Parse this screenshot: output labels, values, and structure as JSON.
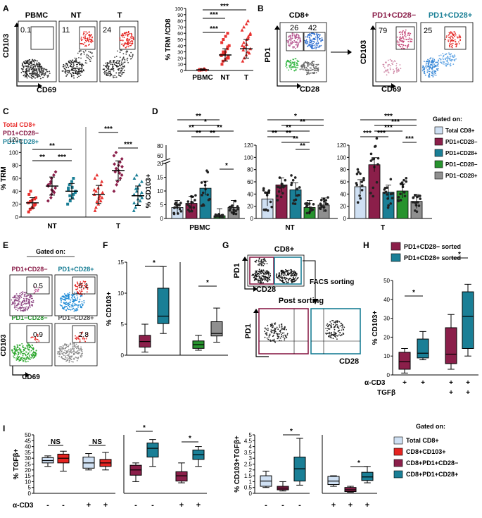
{
  "figure": {
    "panel_letters": [
      "A",
      "B",
      "C",
      "D",
      "E",
      "F",
      "G",
      "H",
      "I"
    ]
  },
  "colors": {
    "pbmc": "#e8312f",
    "purple": "#8b1f4a",
    "teal": "#1a7f96",
    "green": "#27932e",
    "gray": "#8f8f8f",
    "light_blue": "#cfe0f3",
    "red": "#e52421",
    "black": "#000000"
  },
  "panel_a": {
    "flow": [
      {
        "title": "PBMC",
        "pct": "0.1"
      },
      {
        "title": "NT",
        "pct": "11"
      },
      {
        "title": "T",
        "pct": "24"
      }
    ],
    "y_axis": "CD103",
    "x_axis": "CD69"
  },
  "panel_b": {
    "gate_title": "CD8+",
    "quadrant_values": [
      "26",
      "42"
    ],
    "y_axis": "PD1",
    "x_axis": "CD28",
    "sub_plots": [
      {
        "title": "PD1+CD28−",
        "pct": "79"
      },
      {
        "title": "PD1+CD28+",
        "pct": "25"
      }
    ],
    "sub_y": "CD103",
    "sub_x": "CD69"
  },
  "panel_c": {
    "legend": [
      "Total CD8+",
      "PD1+CD28−",
      "PD1+CD28+"
    ],
    "group_labels": [
      "NT",
      "T"
    ],
    "sig_labels": [
      "**",
      "**",
      "***",
      "***",
      "***"
    ]
  },
  "panel_d": {
    "group_labels": [
      "PBMC",
      "NT",
      "T"
    ],
    "gated_title": "Gated on:",
    "legend": [
      "Total CD8+",
      "PD1+CD28−",
      "PD1+CD28+",
      "PD1−CD28−",
      "PD1−CD28+"
    ],
    "y_break_ticks": [
      "60",
      "80"
    ]
  },
  "panel_e": {
    "gated_title": "Gated on:",
    "plots": [
      {
        "title": "PD1+CD28−",
        "pct": "0.5"
      },
      {
        "title": "PD1+CD28+",
        "pct": "5.1"
      },
      {
        "title": "PD1−CD28−",
        "pct": "0.9"
      },
      {
        "title": "PD1−CD28+",
        "pct": "2.8"
      }
    ],
    "y_axis": "CD103",
    "x_axis": "CD69"
  },
  "panel_g": {
    "top_title": "CD8+",
    "side_label": "FACS sorting",
    "bottom_title": "Post sorting",
    "y_axis": "PD1",
    "x_axis": "CD28"
  },
  "panel_h": {
    "legend": [
      "PD1+CD28− sorted",
      "PD1+CD28+ sorted"
    ],
    "row_labels": [
      "α-CD3",
      "TGFβ"
    ],
    "cd3_signs": [
      "+",
      "+",
      "+",
      "+"
    ],
    "tgf_signs": [
      "+",
      "+"
    ]
  },
  "panel_i": {
    "gated_title": "Gated on:",
    "legend": [
      "Total CD8+",
      "CD8+CD103+",
      "CD8+PD1+CD28−",
      "CD8+PD1+CD28+"
    ],
    "row_label": "α-CD3",
    "i1_signs": [
      "-",
      "-",
      "+",
      "+"
    ],
    "i2_signs": [
      "-",
      "-",
      "+",
      "+"
    ],
    "i3_signs": [
      "-",
      "-",
      "-"
    ],
    "i4_signs": [
      "+",
      "+",
      "+"
    ],
    "ns_labels": [
      "NS",
      "NS"
    ]
  },
  "chart_data": [
    {
      "id": "A-right",
      "type": "scatter",
      "title": "",
      "xlabel": "",
      "ylabel": "% TRM /CD8",
      "categories": [
        "PBMC",
        "NT",
        "T"
      ],
      "ylim": [
        0,
        100
      ],
      "yticks": [
        0,
        10,
        20,
        30,
        40,
        50,
        60,
        70,
        80,
        90,
        100
      ],
      "series": [
        {
          "name": "PBMC",
          "values": [
            0,
            0.5,
            1,
            1.5,
            0.5,
            2,
            0,
            1,
            3,
            0.5,
            1,
            2,
            0.5,
            1
          ],
          "mean": 1,
          "sd": 1.5
        },
        {
          "name": "NT",
          "values": [
            10,
            15,
            18,
            20,
            22,
            25,
            28,
            30,
            35,
            40,
            45,
            50,
            55,
            60,
            20,
            24,
            30,
            26,
            38
          ],
          "mean": 25,
          "sd": 10
        },
        {
          "name": "T",
          "values": [
            15,
            20,
            25,
            30,
            35,
            40,
            45,
            50,
            55,
            60,
            65,
            70,
            75,
            80,
            28,
            33,
            38,
            42,
            52,
            58
          ],
          "mean": 35,
          "sd": 15
        }
      ],
      "significance": [
        "***",
        "***",
        "***"
      ]
    },
    {
      "id": "C",
      "type": "scatter",
      "ylabel": "% TRM",
      "groups": [
        "NT",
        "T"
      ],
      "categories": [
        "Total CD8+",
        "PD1+CD28−",
        "PD1+CD28+"
      ],
      "ylim": [
        0,
        120
      ],
      "yticks": [
        0,
        20,
        40,
        60,
        80,
        100,
        120
      ],
      "series": [
        {
          "name": "NT Total CD8+",
          "values": [
            8,
            12,
            15,
            18,
            20,
            22,
            24,
            26,
            28,
            30,
            35,
            40,
            14,
            19
          ],
          "mean": 22,
          "sd": 8
        },
        {
          "name": "NT PD1+CD28−",
          "values": [
            25,
            30,
            35,
            40,
            45,
            50,
            55,
            60,
            65,
            70,
            48,
            52,
            42,
            38
          ],
          "mean": 48,
          "sd": 14
        },
        {
          "name": "NT PD1+CD28+",
          "values": [
            20,
            25,
            30,
            35,
            40,
            45,
            50,
            55,
            60,
            38,
            42,
            33,
            46
          ],
          "mean": 40,
          "sd": 12
        },
        {
          "name": "T Total CD8+",
          "values": [
            10,
            15,
            20,
            25,
            30,
            35,
            40,
            45,
            50,
            55,
            60,
            65,
            28,
            33,
            38,
            42,
            24,
            31
          ],
          "mean": 35,
          "sd": 14
        },
        {
          "name": "T PD1+CD28−",
          "values": [
            40,
            50,
            55,
            60,
            65,
            70,
            75,
            80,
            85,
            90,
            95,
            100,
            72,
            68,
            78,
            82
          ],
          "mean": 72,
          "sd": 15
        },
        {
          "name": "T PD1+CD28+",
          "values": [
            10,
            15,
            20,
            25,
            30,
            35,
            40,
            45,
            50,
            55,
            60,
            65,
            28,
            33,
            38,
            22,
            44
          ],
          "mean": 33,
          "sd": 15
        }
      ]
    },
    {
      "id": "D",
      "type": "bar",
      "ylabel": "% CD103+",
      "groups": [
        "PBMC",
        "NT",
        "T"
      ],
      "categories": [
        "Total CD8+",
        "PD1+CD28−",
        "PD1+CD28+",
        "PD1−CD28−",
        "PD1−CD28+"
      ],
      "ylim_lower": [
        0,
        20
      ],
      "ylim_upper": [
        60,
        80
      ],
      "yticks_pbmc": [
        0,
        5,
        10,
        15,
        20
      ],
      "yticks_other": [
        0,
        20,
        40,
        60,
        80,
        100,
        120
      ],
      "series": [
        {
          "name": "PBMC",
          "values": [
            4,
            5.5,
            11,
            1,
            4
          ]
        },
        {
          "name": "NT",
          "values": [
            32,
            55,
            47,
            18,
            22
          ]
        },
        {
          "name": "T",
          "values": [
            52,
            88,
            43,
            45,
            28
          ]
        }
      ]
    },
    {
      "id": "F",
      "type": "box",
      "ylabel": "% CD103+",
      "ylim": [
        0,
        15
      ],
      "yticks": [
        0,
        5,
        10,
        15
      ],
      "series": [
        {
          "name": "PD1+CD28−",
          "min": 0.5,
          "q1": 1.3,
          "median": 2.2,
          "q3": 3.2,
          "max": 5
        },
        {
          "name": "PD1+CD28+",
          "min": 3.5,
          "q1": 5.1,
          "median": 6.3,
          "q3": 10.8,
          "max": 14.3
        },
        {
          "name": "PD1−CD28−",
          "min": 0.8,
          "q1": 1.1,
          "median": 1.7,
          "q3": 2.3,
          "max": 3.2
        },
        {
          "name": "PD1−CD28+",
          "min": 2.1,
          "q1": 3.1,
          "median": 3.5,
          "q3": 5.4,
          "max": 7.6
        }
      ],
      "significance": [
        "*",
        "*"
      ]
    },
    {
      "id": "H",
      "type": "box",
      "ylabel": "% CD103+",
      "ylim": [
        0,
        50
      ],
      "yticks": [
        0,
        10,
        20,
        30,
        40,
        50
      ],
      "series": [
        {
          "name": "PD1+CD28− α-CD3",
          "min": 1,
          "q1": 3,
          "median": 7,
          "q3": 12,
          "max": 14
        },
        {
          "name": "PD1+CD28+ α-CD3",
          "min": 8,
          "q1": 9,
          "median": 11.5,
          "q3": 19,
          "max": 23
        },
        {
          "name": "PD1+CD28− α-CD3+TGFβ",
          "min": 3,
          "q1": 6,
          "median": 11,
          "q3": 25,
          "max": 32
        },
        {
          "name": "PD1+CD28+ α-CD3+TGFβ",
          "min": 10,
          "q1": 14,
          "median": 31,
          "q3": 44,
          "max": 48
        }
      ],
      "significance": [
        "*",
        "*"
      ]
    },
    {
      "id": "I-1",
      "type": "box",
      "ylabel": "% TGFβ+",
      "ylim": [
        0,
        50
      ],
      "yticks": [
        0,
        5,
        10,
        15,
        20,
        25,
        30,
        35,
        40,
        45,
        50
      ],
      "series": [
        {
          "name": "Total CD8+ −",
          "min": 23,
          "q1": 26,
          "median": 28,
          "q3": 30.5,
          "max": 32
        },
        {
          "name": "CD8+CD103+ −",
          "min": 19,
          "q1": 26,
          "median": 30,
          "q3": 33.5,
          "max": 36
        },
        {
          "name": "Total CD8+ +",
          "min": 20,
          "q1": 21.5,
          "median": 26,
          "q3": 31,
          "max": 34
        },
        {
          "name": "CD8+CD103+ +",
          "min": 20,
          "q1": 23,
          "median": 26,
          "q3": 29,
          "max": 35
        }
      ],
      "significance": [
        "NS",
        "NS"
      ]
    },
    {
      "id": "I-2",
      "type": "box",
      "ylabel": "",
      "ylim": [
        0,
        50
      ],
      "series": [
        {
          "name": "CD8+PD1+CD28− −",
          "min": 10,
          "q1": 15.5,
          "median": 20,
          "q3": 24,
          "max": 26
        },
        {
          "name": "CD8+PD1+CD28+ −",
          "min": 23,
          "q1": 31,
          "median": 38.5,
          "q3": 43,
          "max": 46
        },
        {
          "name": "CD8+PD1+CD28− +",
          "min": 9,
          "q1": 10.5,
          "median": 15,
          "q3": 18.5,
          "max": 26
        },
        {
          "name": "CD8+PD1+CD28+ +",
          "min": 23,
          "q1": 29,
          "median": 33,
          "q3": 37,
          "max": 40
        }
      ],
      "significance": [
        "*",
        "*"
      ]
    },
    {
      "id": "I-3",
      "type": "box",
      "ylabel": "% CD103+TGFβ+",
      "ylim": [
        0,
        5
      ],
      "yticks": [
        0,
        0.5,
        1,
        1.5,
        2,
        2.5,
        3,
        3.5,
        4,
        4.5,
        5
      ],
      "series": [
        {
          "name": "Total CD8+ −",
          "min": 0.5,
          "q1": 0.6,
          "median": 1.05,
          "q3": 1.5,
          "max": 1.9
        },
        {
          "name": "CD8+PD1+CD28− −",
          "min": 0.2,
          "q1": 0.3,
          "median": 0.45,
          "q3": 0.6,
          "max": 1.0
        },
        {
          "name": "CD8+PD1+CD28+ −",
          "min": 0.7,
          "q1": 1.05,
          "median": 2.1,
          "q3": 3.1,
          "max": 4.7
        }
      ],
      "significance": [
        "*"
      ]
    },
    {
      "id": "I-4",
      "type": "box",
      "ylabel": "",
      "ylim": [
        0,
        5
      ],
      "series": [
        {
          "name": "Total CD8+ +",
          "min": 0.6,
          "q1": 0.75,
          "median": 1.05,
          "q3": 1.45,
          "max": 1.5
        },
        {
          "name": "CD8+PD1+CD28− +",
          "min": 0.1,
          "q1": 0.15,
          "median": 0.3,
          "q3": 0.5,
          "max": 0.6
        },
        {
          "name": "CD8+PD1+CD28+ +",
          "min": 0.9,
          "q1": 1.1,
          "median": 1.4,
          "q3": 1.8,
          "max": 2.3
        }
      ],
      "significance": [
        "*"
      ]
    }
  ]
}
